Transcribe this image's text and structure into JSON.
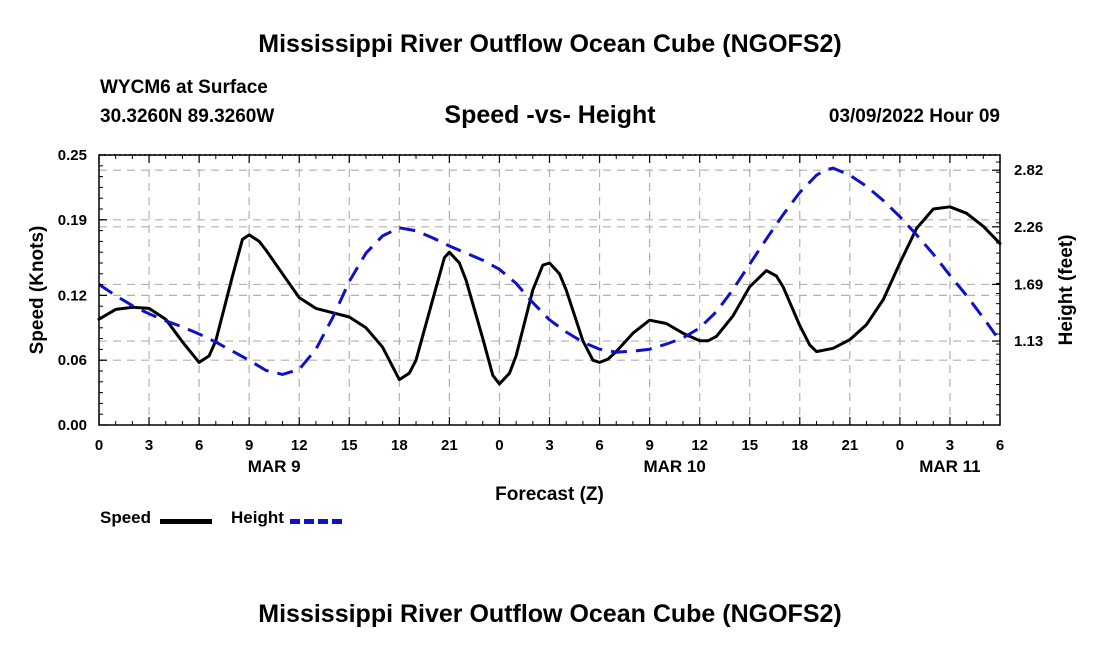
{
  "page": {
    "title_top": "Mississippi River Outflow Ocean Cube (NGOFS2)",
    "title_bottom": "Mississippi River Outflow Ocean Cube (NGOFS2)",
    "station": "WYCM6 at Surface",
    "coords": "30.3260N  89.3260W",
    "subtitle": "Speed -vs- Height",
    "datetime": "03/09/2022 Hour 09"
  },
  "legend": {
    "speed": "Speed",
    "height": "Height"
  },
  "colors": {
    "speed": "#000000",
    "height": "#1010c8",
    "grid": "#b0b0b0"
  },
  "chart_data": {
    "type": "line",
    "title": "Speed -vs- Height",
    "xlabel": "Forecast (Z)",
    "ylabel": "Speed (Knots)",
    "y2label": "Height (feet)",
    "x_unit": "hours since 00Z Mar 9 (-> Mar 11 06Z)",
    "xlim": [
      0,
      54
    ],
    "ylim": [
      0,
      0.25
    ],
    "y2lim": [
      0.3,
      2.97
    ],
    "x_ticks": [
      0,
      3,
      6,
      9,
      12,
      15,
      18,
      21,
      24,
      27,
      30,
      33,
      36,
      39,
      42,
      45,
      48,
      51,
      54
    ],
    "x_tick_labels": [
      "0",
      "3",
      "6",
      "9",
      "12",
      "15",
      "18",
      "21",
      "0",
      "3",
      "6",
      "9",
      "12",
      "15",
      "18",
      "21",
      "0",
      "3",
      "6"
    ],
    "date_labels": [
      {
        "x": 10.5,
        "label": "MAR 9"
      },
      {
        "x": 34.5,
        "label": "MAR 10"
      },
      {
        "x": 51.0,
        "label": "MAR 11"
      }
    ],
    "y_ticks": [
      0.0,
      0.06,
      0.12,
      0.19,
      0.25
    ],
    "y_tick_labels": [
      "0.00",
      "0.06",
      "0.12",
      "0.19",
      "0.25"
    ],
    "y2_ticks": [
      1.13,
      1.69,
      2.26,
      2.82
    ],
    "y2_tick_labels": [
      "1.13",
      "1.69",
      "2.26",
      "2.82"
    ],
    "grid": true,
    "series": [
      {
        "name": "Speed",
        "axis": "left",
        "style": "solid",
        "points": [
          [
            0,
            0.098
          ],
          [
            1,
            0.107
          ],
          [
            2,
            0.109
          ],
          [
            3,
            0.108
          ],
          [
            4,
            0.098
          ],
          [
            5,
            0.077
          ],
          [
            6,
            0.058
          ],
          [
            6.6,
            0.064
          ],
          [
            7,
            0.078
          ],
          [
            8,
            0.138
          ],
          [
            8.6,
            0.172
          ],
          [
            9,
            0.176
          ],
          [
            9.6,
            0.17
          ],
          [
            10,
            0.162
          ],
          [
            11,
            0.14
          ],
          [
            12,
            0.118
          ],
          [
            13,
            0.108
          ],
          [
            14,
            0.104
          ],
          [
            15,
            0.1
          ],
          [
            16,
            0.09
          ],
          [
            17,
            0.072
          ],
          [
            18,
            0.042
          ],
          [
            18.6,
            0.048
          ],
          [
            19,
            0.06
          ],
          [
            20,
            0.116
          ],
          [
            20.7,
            0.155
          ],
          [
            21,
            0.16
          ],
          [
            21.6,
            0.15
          ],
          [
            22,
            0.134
          ],
          [
            23,
            0.08
          ],
          [
            23.6,
            0.046
          ],
          [
            24,
            0.038
          ],
          [
            24.6,
            0.048
          ],
          [
            25,
            0.064
          ],
          [
            26,
            0.125
          ],
          [
            26.6,
            0.148
          ],
          [
            27,
            0.15
          ],
          [
            27.6,
            0.14
          ],
          [
            28,
            0.125
          ],
          [
            29,
            0.078
          ],
          [
            29.6,
            0.06
          ],
          [
            30,
            0.058
          ],
          [
            30.5,
            0.061
          ],
          [
            31,
            0.068
          ],
          [
            32,
            0.085
          ],
          [
            33,
            0.097
          ],
          [
            34,
            0.094
          ],
          [
            35,
            0.085
          ],
          [
            36,
            0.078
          ],
          [
            36.5,
            0.078
          ],
          [
            37,
            0.082
          ],
          [
            38,
            0.101
          ],
          [
            39,
            0.128
          ],
          [
            40,
            0.143
          ],
          [
            40.6,
            0.138
          ],
          [
            41,
            0.128
          ],
          [
            42,
            0.092
          ],
          [
            42.6,
            0.074
          ],
          [
            43,
            0.068
          ],
          [
            44,
            0.071
          ],
          [
            45,
            0.079
          ],
          [
            46,
            0.093
          ],
          [
            47,
            0.116
          ],
          [
            48,
            0.15
          ],
          [
            49,
            0.182
          ],
          [
            50,
            0.2
          ],
          [
            51,
            0.202
          ],
          [
            52,
            0.196
          ],
          [
            53,
            0.184
          ],
          [
            54,
            0.168
          ]
        ]
      },
      {
        "name": "Height",
        "axis": "right",
        "style": "dashed",
        "points": [
          [
            0,
            1.69
          ],
          [
            1,
            1.58
          ],
          [
            2,
            1.48
          ],
          [
            3,
            1.4
          ],
          [
            4,
            1.33
          ],
          [
            5,
            1.27
          ],
          [
            6,
            1.2
          ],
          [
            7,
            1.12
          ],
          [
            8,
            1.03
          ],
          [
            9,
            0.94
          ],
          [
            10,
            0.84
          ],
          [
            11,
            0.8
          ],
          [
            12,
            0.85
          ],
          [
            13,
            1.05
          ],
          [
            14,
            1.36
          ],
          [
            15,
            1.72
          ],
          [
            16,
            2.0
          ],
          [
            17,
            2.17
          ],
          [
            18,
            2.25
          ],
          [
            19,
            2.22
          ],
          [
            20,
            2.15
          ],
          [
            21,
            2.07
          ],
          [
            22,
            2.0
          ],
          [
            23,
            1.93
          ],
          [
            24,
            1.84
          ],
          [
            25,
            1.7
          ],
          [
            26,
            1.51
          ],
          [
            27,
            1.34
          ],
          [
            28,
            1.22
          ],
          [
            29,
            1.12
          ],
          [
            30,
            1.05
          ],
          [
            31,
            1.02
          ],
          [
            32,
            1.03
          ],
          [
            33,
            1.05
          ],
          [
            34,
            1.1
          ],
          [
            35,
            1.16
          ],
          [
            36,
            1.26
          ],
          [
            37,
            1.42
          ],
          [
            38,
            1.64
          ],
          [
            39,
            1.89
          ],
          [
            40,
            2.14
          ],
          [
            41,
            2.38
          ],
          [
            42,
            2.6
          ],
          [
            43,
            2.77
          ],
          [
            43.5,
            2.82
          ],
          [
            44,
            2.84
          ],
          [
            45,
            2.77
          ],
          [
            46,
            2.66
          ],
          [
            47,
            2.52
          ],
          [
            48,
            2.36
          ],
          [
            49,
            2.18
          ],
          [
            50,
            1.99
          ],
          [
            51,
            1.78
          ],
          [
            52,
            1.58
          ],
          [
            53,
            1.36
          ],
          [
            54,
            1.13
          ]
        ]
      }
    ]
  }
}
